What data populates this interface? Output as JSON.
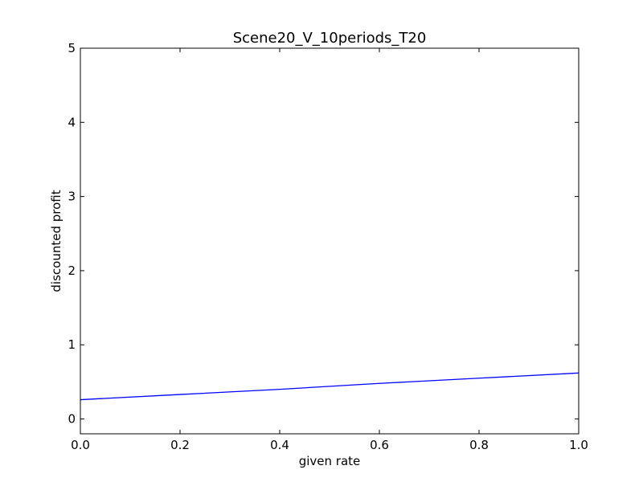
{
  "chart_data": {
    "type": "line",
    "title": "Scene20_V_10periods_T20",
    "xlabel": "given rate",
    "ylabel": "discounted profit",
    "xlim": [
      0.0,
      1.0
    ],
    "ylim": [
      -0.2,
      5.0
    ],
    "x_ticks": [
      0.0,
      0.2,
      0.4,
      0.6,
      0.8,
      1.0
    ],
    "x_tick_labels": [
      "0.0",
      "0.2",
      "0.4",
      "0.6",
      "0.8",
      "1.0"
    ],
    "y_ticks": [
      0,
      1,
      2,
      3,
      4,
      5
    ],
    "y_tick_labels": [
      "0",
      "1",
      "2",
      "3",
      "4",
      "5"
    ],
    "grid": false,
    "series": [
      {
        "color": "#0000ff",
        "x": [
          0.0,
          0.2,
          0.4,
          0.6,
          0.8,
          1.0
        ],
        "y": [
          0.26,
          0.33,
          0.4,
          0.48,
          0.55,
          0.62
        ]
      }
    ]
  }
}
